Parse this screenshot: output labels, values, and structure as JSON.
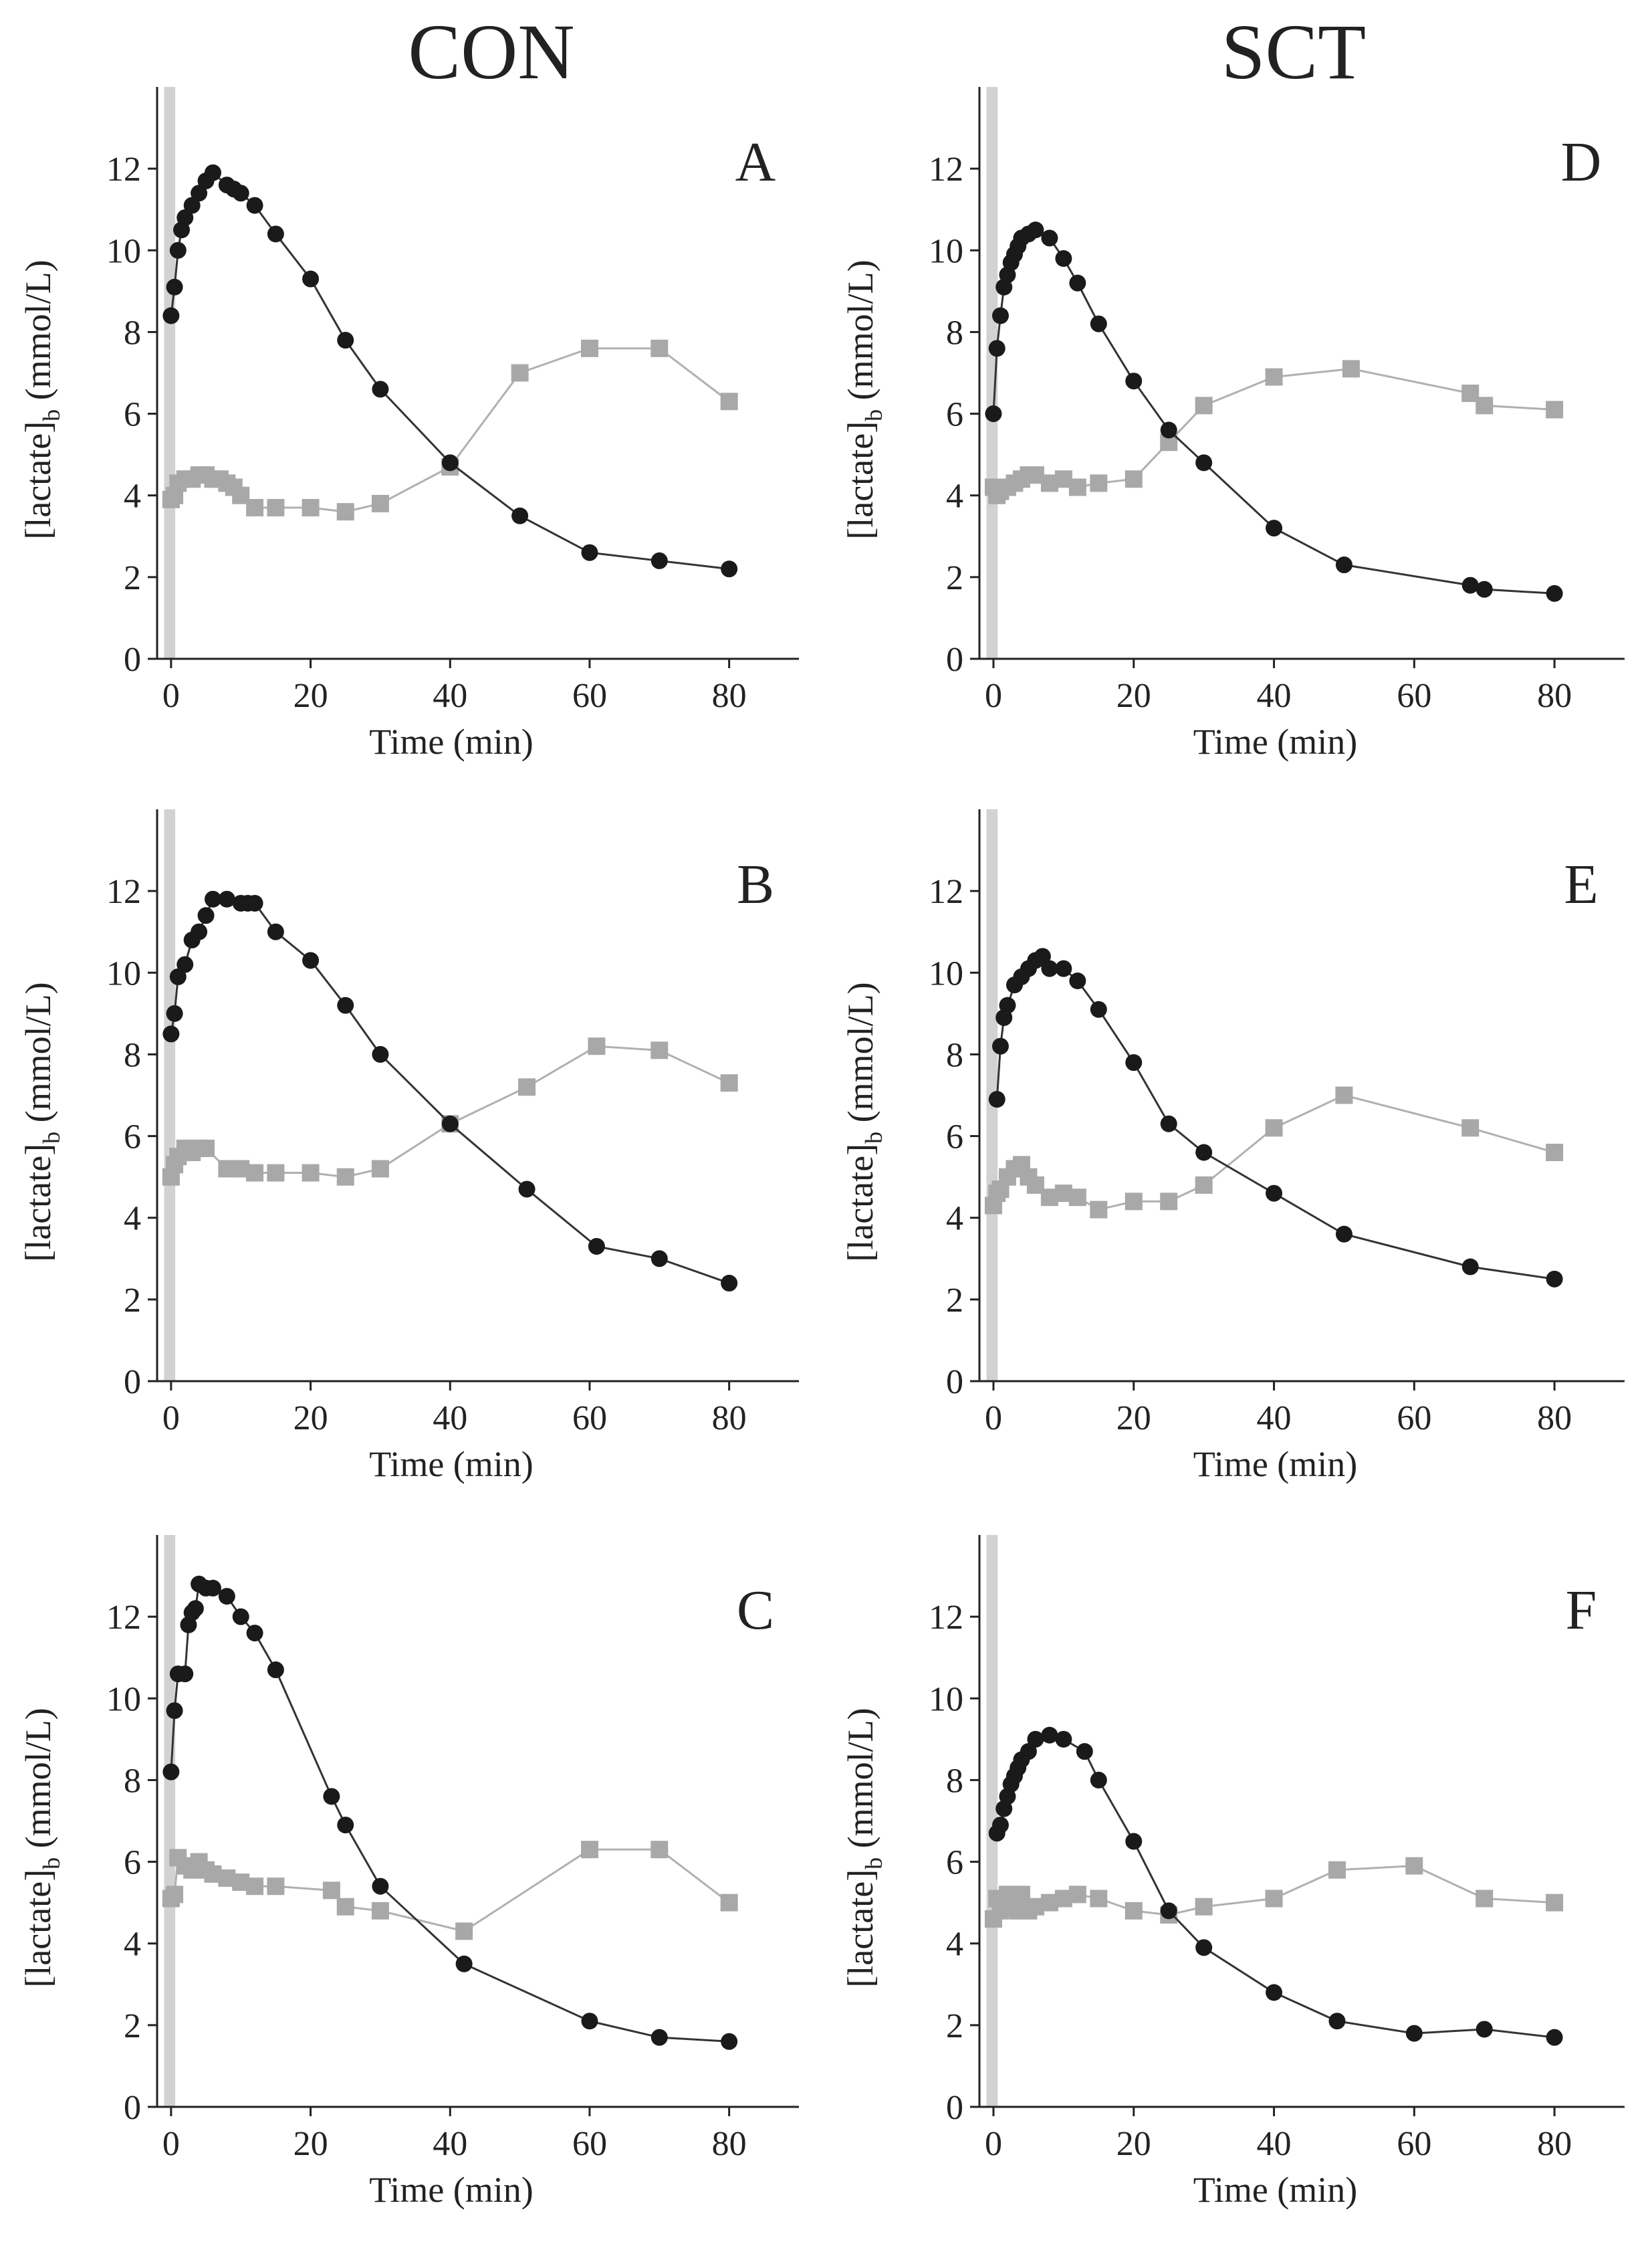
{
  "columns": [
    {
      "key": "con",
      "label": "CON"
    },
    {
      "key": "sct",
      "label": "SCT"
    }
  ],
  "chart_data": [
    {
      "panel": "A",
      "column": "CON",
      "type": "line",
      "xlabel": "Time (min)",
      "ylabel": "[lactate]b (mmol/L)",
      "xlim": [
        -2,
        90
      ],
      "ylim": [
        0,
        14
      ],
      "xticks": [
        0,
        20,
        40,
        60,
        80
      ],
      "yticks": [
        0,
        2,
        4,
        6,
        8,
        10,
        12
      ],
      "shaded_band": [
        -1,
        0.6
      ],
      "series": [
        {
          "marker": "circle",
          "color": "#1a1a1a",
          "x": [
            0,
            0.5,
            1,
            1.5,
            2,
            3,
            4,
            5,
            6,
            8,
            9,
            10,
            12,
            15,
            20,
            25,
            30,
            40,
            50,
            60,
            70,
            80
          ],
          "y": [
            8.4,
            9.1,
            10.0,
            10.5,
            10.8,
            11.1,
            11.4,
            11.7,
            11.9,
            11.6,
            11.5,
            11.4,
            11.1,
            10.4,
            9.3,
            7.8,
            6.6,
            4.8,
            3.5,
            2.6,
            2.4,
            2.2
          ]
        },
        {
          "marker": "square",
          "color": "#a8a8a8",
          "x": [
            0,
            0.5,
            1,
            2,
            3,
            4,
            5,
            6,
            7,
            8,
            9,
            10,
            12,
            15,
            20,
            25,
            30,
            40,
            50,
            60,
            70,
            80
          ],
          "y": [
            3.9,
            4.0,
            4.3,
            4.4,
            4.4,
            4.5,
            4.5,
            4.4,
            4.4,
            4.3,
            4.2,
            4.0,
            3.7,
            3.7,
            3.7,
            3.6,
            3.8,
            4.7,
            7.0,
            7.6,
            7.6,
            6.3
          ]
        }
      ]
    },
    {
      "panel": "B",
      "column": "CON",
      "type": "line",
      "xlabel": "Time (min)",
      "ylabel": "[lactate]b (mmol/L)",
      "xlim": [
        -2,
        90
      ],
      "ylim": [
        0,
        14
      ],
      "xticks": [
        0,
        20,
        40,
        60,
        80
      ],
      "yticks": [
        0,
        2,
        4,
        6,
        8,
        10,
        12
      ],
      "shaded_band": [
        -1,
        0.6
      ],
      "series": [
        {
          "marker": "circle",
          "color": "#1a1a1a",
          "x": [
            0,
            0.5,
            1,
            2,
            3,
            4,
            5,
            6,
            8,
            10,
            11,
            12,
            15,
            20,
            25,
            30,
            40,
            51,
            61,
            70,
            80
          ],
          "y": [
            8.5,
            9.0,
            9.9,
            10.2,
            10.8,
            11.0,
            11.4,
            11.8,
            11.8,
            11.7,
            11.7,
            11.7,
            11.0,
            10.3,
            9.2,
            8.0,
            6.3,
            4.7,
            3.3,
            3.0,
            2.4
          ]
        },
        {
          "marker": "square",
          "color": "#a8a8a8",
          "x": [
            0,
            0.5,
            1,
            2,
            3,
            4,
            5,
            8,
            10,
            12,
            15,
            20,
            25,
            30,
            40,
            51,
            61,
            70,
            80
          ],
          "y": [
            5.0,
            5.3,
            5.5,
            5.7,
            5.6,
            5.7,
            5.7,
            5.2,
            5.2,
            5.1,
            5.1,
            5.1,
            5.0,
            5.2,
            6.3,
            7.2,
            8.2,
            8.1,
            7.3
          ]
        }
      ]
    },
    {
      "panel": "C",
      "column": "CON",
      "type": "line",
      "xlabel": "Time (min)",
      "ylabel": "[lactate]b (mmol/L)",
      "xlim": [
        -2,
        90
      ],
      "ylim": [
        0,
        14
      ],
      "xticks": [
        0,
        20,
        40,
        60,
        80
      ],
      "yticks": [
        0,
        2,
        4,
        6,
        8,
        10,
        12
      ],
      "shaded_band": [
        -1,
        0.6
      ],
      "series": [
        {
          "marker": "circle",
          "color": "#1a1a1a",
          "x": [
            0,
            0.5,
            1,
            2,
            2.5,
            3,
            3.5,
            4,
            5,
            6,
            8,
            10,
            12,
            15,
            23,
            25,
            30,
            42,
            60,
            70,
            80
          ],
          "y": [
            8.2,
            9.7,
            10.6,
            10.6,
            11.8,
            12.1,
            12.2,
            12.8,
            12.7,
            12.7,
            12.5,
            12.0,
            11.6,
            10.7,
            7.6,
            6.9,
            5.4,
            3.5,
            2.1,
            1.7,
            1.6
          ]
        },
        {
          "marker": "square",
          "color": "#a8a8a8",
          "x": [
            0,
            0.5,
            1,
            2,
            3,
            4,
            5,
            6,
            8,
            10,
            12,
            15,
            23,
            25,
            30,
            42,
            60,
            70,
            80
          ],
          "y": [
            5.1,
            5.2,
            6.1,
            5.9,
            5.8,
            6.0,
            5.8,
            5.7,
            5.6,
            5.5,
            5.4,
            5.4,
            5.3,
            4.9,
            4.8,
            4.3,
            6.3,
            6.3,
            5.0
          ]
        }
      ]
    },
    {
      "panel": "D",
      "column": "SCT",
      "type": "line",
      "xlabel": "Time (min)",
      "ylabel": "[lactate]b (mmol/L)",
      "xlim": [
        -2,
        90
      ],
      "ylim": [
        0,
        14
      ],
      "xticks": [
        0,
        20,
        40,
        60,
        80
      ],
      "yticks": [
        0,
        2,
        4,
        6,
        8,
        10,
        12
      ],
      "shaded_band": [
        -1,
        0.6
      ],
      "series": [
        {
          "marker": "circle",
          "color": "#1a1a1a",
          "x": [
            0,
            0.5,
            1,
            1.5,
            2,
            2.5,
            3,
            3.5,
            4,
            5,
            6,
            8,
            10,
            12,
            15,
            20,
            25,
            30,
            40,
            50,
            68,
            70,
            80
          ],
          "y": [
            6.0,
            7.6,
            8.4,
            9.1,
            9.4,
            9.7,
            9.9,
            10.1,
            10.3,
            10.4,
            10.5,
            10.3,
            9.8,
            9.2,
            8.2,
            6.8,
            5.6,
            4.8,
            3.2,
            2.3,
            1.8,
            1.7,
            1.6
          ]
        },
        {
          "marker": "square",
          "color": "#a8a8a8",
          "x": [
            0,
            0.5,
            1,
            2,
            3,
            4,
            5,
            6,
            8,
            10,
            12,
            15,
            20,
            25,
            30,
            40,
            51,
            68,
            70,
            80
          ],
          "y": [
            4.2,
            4.0,
            4.1,
            4.2,
            4.3,
            4.4,
            4.5,
            4.5,
            4.3,
            4.4,
            4.2,
            4.3,
            4.4,
            5.3,
            6.2,
            6.9,
            7.1,
            6.5,
            6.2,
            6.1
          ]
        }
      ]
    },
    {
      "panel": "E",
      "column": "SCT",
      "type": "line",
      "xlabel": "Time (min)",
      "ylabel": "[lactate]b (mmol/L)",
      "xlim": [
        -2,
        90
      ],
      "ylim": [
        0,
        14
      ],
      "xticks": [
        0,
        20,
        40,
        60,
        80
      ],
      "yticks": [
        0,
        2,
        4,
        6,
        8,
        10,
        12
      ],
      "shaded_band": [
        -1,
        0.6
      ],
      "series": [
        {
          "marker": "circle",
          "color": "#1a1a1a",
          "x": [
            0.5,
            1,
            1.5,
            2,
            3,
            4,
            5,
            6,
            7,
            8,
            10,
            12,
            15,
            20,
            25,
            30,
            40,
            50,
            68,
            80
          ],
          "y": [
            6.9,
            8.2,
            8.9,
            9.2,
            9.7,
            9.9,
            10.1,
            10.3,
            10.4,
            10.1,
            10.1,
            9.8,
            9.1,
            7.8,
            6.3,
            5.6,
            4.6,
            3.6,
            2.8,
            2.5
          ]
        },
        {
          "marker": "square",
          "color": "#a8a8a8",
          "x": [
            0,
            0.5,
            1,
            2,
            3,
            4,
            5,
            6,
            8,
            10,
            12,
            15,
            20,
            25,
            30,
            40,
            50,
            68,
            80
          ],
          "y": [
            4.3,
            4.6,
            4.7,
            5.0,
            5.2,
            5.3,
            5.0,
            4.8,
            4.5,
            4.6,
            4.5,
            4.2,
            4.4,
            4.4,
            4.8,
            6.2,
            7.0,
            6.2,
            5.6
          ]
        }
      ]
    },
    {
      "panel": "F",
      "column": "SCT",
      "type": "line",
      "xlabel": "Time (min)",
      "ylabel": "[lactate]b (mmol/L)",
      "xlim": [
        -2,
        90
      ],
      "ylim": [
        0,
        14
      ],
      "xticks": [
        0,
        20,
        40,
        60,
        80
      ],
      "yticks": [
        0,
        2,
        4,
        6,
        8,
        10,
        12
      ],
      "shaded_band": [
        -1,
        0.6
      ],
      "series": [
        {
          "marker": "circle",
          "color": "#1a1a1a",
          "x": [
            0.5,
            1,
            1.5,
            2,
            2.5,
            3,
            3.5,
            4,
            5,
            6,
            8,
            10,
            13,
            15,
            20,
            25,
            30,
            40,
            49,
            60,
            70,
            80
          ],
          "y": [
            6.7,
            6.9,
            7.3,
            7.6,
            7.9,
            8.1,
            8.3,
            8.5,
            8.7,
            9.0,
            9.1,
            9.0,
            8.7,
            8.0,
            6.5,
            4.8,
            3.9,
            2.8,
            2.1,
            1.8,
            1.9,
            1.7
          ]
        },
        {
          "marker": "square",
          "color": "#a8a8a8",
          "x": [
            0,
            0.5,
            1,
            1.5,
            2,
            2.5,
            3,
            3.5,
            4,
            5,
            6,
            8,
            10,
            12,
            15,
            20,
            25,
            30,
            40,
            49,
            60,
            70,
            80
          ],
          "y": [
            4.6,
            5.1,
            4.8,
            5.0,
            5.2,
            4.9,
            5.2,
            4.8,
            5.2,
            4.8,
            4.9,
            5.0,
            5.1,
            5.2,
            5.1,
            4.8,
            4.7,
            4.9,
            5.1,
            5.8,
            5.9,
            5.1,
            5.0
          ]
        }
      ]
    }
  ]
}
